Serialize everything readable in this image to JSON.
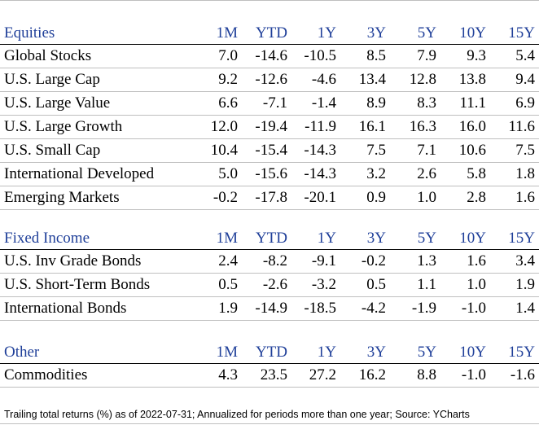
{
  "columns": [
    "1M",
    "YTD",
    "1Y",
    "3Y",
    "5Y",
    "10Y",
    "15Y"
  ],
  "sections": [
    {
      "title": "Equities",
      "rows": [
        {
          "name": "Global Stocks",
          "values": [
            "7.0",
            "-14.6",
            "-10.5",
            "8.5",
            "7.9",
            "9.3",
            "5.4"
          ]
        },
        {
          "name": "U.S. Large Cap",
          "values": [
            "9.2",
            "-12.6",
            "-4.6",
            "13.4",
            "12.8",
            "13.8",
            "9.4"
          ]
        },
        {
          "name": "U.S. Large Value",
          "values": [
            "6.6",
            "-7.1",
            "-1.4",
            "8.9",
            "8.3",
            "11.1",
            "6.9"
          ]
        },
        {
          "name": "U.S. Large Growth",
          "values": [
            "12.0",
            "-19.4",
            "-11.9",
            "16.1",
            "16.3",
            "16.0",
            "11.6"
          ]
        },
        {
          "name": "U.S. Small Cap",
          "values": [
            "10.4",
            "-15.4",
            "-14.3",
            "7.5",
            "7.1",
            "10.6",
            "7.5"
          ]
        },
        {
          "name": "International Developed",
          "values": [
            "5.0",
            "-15.6",
            "-14.3",
            "3.2",
            "2.6",
            "5.8",
            "1.8"
          ]
        },
        {
          "name": "Emerging Markets",
          "values": [
            "-0.2",
            "-17.8",
            "-20.1",
            "0.9",
            "1.0",
            "2.8",
            "1.6"
          ]
        }
      ]
    },
    {
      "title": "Fixed Income",
      "rows": [
        {
          "name": "U.S. Inv Grade Bonds",
          "values": [
            "2.4",
            "-8.2",
            "-9.1",
            "-0.2",
            "1.3",
            "1.6",
            "3.4"
          ]
        },
        {
          "name": "U.S. Short-Term Bonds",
          "values": [
            "0.5",
            "-2.6",
            "-3.2",
            "0.5",
            "1.1",
            "1.0",
            "1.9"
          ]
        },
        {
          "name": "International Bonds",
          "values": [
            "1.9",
            "-14.9",
            "-18.5",
            "-4.2",
            "-1.9",
            "-1.0",
            "1.4"
          ]
        }
      ]
    },
    {
      "title": "Other",
      "rows": [
        {
          "name": "Commodities",
          "values": [
            "4.3",
            "23.5",
            "27.2",
            "16.2",
            "8.8",
            "-1.0",
            "-1.6"
          ]
        }
      ]
    }
  ],
  "footnote": "Trailing total returns (%) as of 2022-07-31; Annualized for periods more than one year; Source: YCharts",
  "colors": {
    "header_text": "#1f3f99",
    "row_divider": "#bfbfbf",
    "header_divider": "#000000"
  }
}
